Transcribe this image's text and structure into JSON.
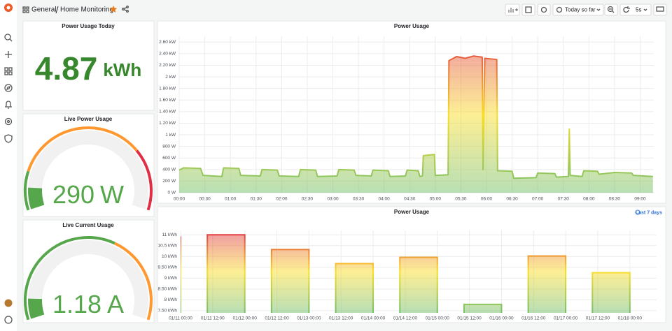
{
  "header": {
    "folder": "General",
    "dashboard": "Home Monitoring",
    "time_range": "Today so far",
    "refresh": "5s"
  },
  "chart_data": [
    {
      "type": "stat",
      "title": "Power Usage Today",
      "value": 4.87,
      "unit": "kWh",
      "color": "#37872d"
    },
    {
      "type": "gauge",
      "title": "Live Power Usage",
      "value": 290,
      "unit": "W",
      "min": 0,
      "max": 3000,
      "thresholds": [
        {
          "color": "#56a64b"
        },
        {
          "value": 500,
          "color": "#ff9830"
        },
        {
          "value": 2200,
          "color": "#e02f44"
        }
      ]
    },
    {
      "type": "gauge",
      "title": "Live Current Usage",
      "value": 1.18,
      "unit": "A",
      "min": 0,
      "max": 13,
      "thresholds": [
        {
          "color": "#56a64b"
        },
        {
          "value": 8,
          "color": "#ff9830"
        }
      ]
    },
    {
      "type": "line",
      "title": "Power Usage",
      "x": [
        "00:00",
        "00:05",
        "00:25",
        "00:28",
        "00:50",
        "00:52",
        "01:10",
        "01:12",
        "01:35",
        "01:37",
        "01:55",
        "01:57",
        "02:20",
        "02:22",
        "02:40",
        "02:42",
        "03:05",
        "03:07",
        "03:25",
        "03:27",
        "03:45",
        "03:47",
        "04:05",
        "04:07",
        "04:25",
        "04:27",
        "04:40",
        "04:42",
        "04:45",
        "04:46",
        "04:59",
        "05:00",
        "05:15",
        "05:16",
        "05:25",
        "05:35",
        "05:45",
        "05:55",
        "05:56",
        "05:58",
        "06:12",
        "06:13",
        "06:30",
        "06:32",
        "06:58",
        "07:00",
        "07:20",
        "07:22",
        "07:36",
        "07:37",
        "07:38",
        "07:52",
        "07:54",
        "08:10",
        "08:12",
        "08:30",
        "08:50",
        "08:52",
        "09:15"
      ],
      "values": [
        390,
        430,
        420,
        300,
        280,
        430,
        420,
        300,
        290,
        400,
        390,
        290,
        280,
        400,
        390,
        280,
        290,
        400,
        390,
        300,
        290,
        390,
        380,
        280,
        290,
        390,
        380,
        280,
        290,
        640,
        660,
        300,
        310,
        2280,
        2350,
        2320,
        2360,
        2340,
        400,
        2320,
        2300,
        380,
        370,
        250,
        260,
        340,
        330,
        270,
        280,
        1100,
        300,
        280,
        380,
        370,
        320,
        350,
        340,
        300,
        280
      ],
      "gradient": [
        "#73bf69",
        "#fade2a",
        "#e02f44"
      ],
      "xlim": [
        "00:00",
        "09:16"
      ],
      "xticks": [
        "00:00",
        "00:30",
        "01:00",
        "01:30",
        "02:00",
        "02:30",
        "03:00",
        "03:30",
        "04:00",
        "04:30",
        "05:00",
        "05:30",
        "06:00",
        "06:30",
        "07:00",
        "07:30",
        "08:00",
        "08:30",
        "09:00"
      ],
      "ylim": [
        0,
        2700
      ],
      "yticks": [
        {
          "value": 0,
          "label": "0 W"
        },
        {
          "value": 200,
          "label": "200 W"
        },
        {
          "value": 400,
          "label": "400 W"
        },
        {
          "value": 600,
          "label": "600 W"
        },
        {
          "value": 800,
          "label": "800 W"
        },
        {
          "value": 1000,
          "label": "1 kW"
        },
        {
          "value": 1200,
          "label": "1.20 kW"
        },
        {
          "value": 1400,
          "label": "1.40 kW"
        },
        {
          "value": 1600,
          "label": "1.60 kW"
        },
        {
          "value": 1800,
          "label": "1.80 kW"
        },
        {
          "value": 2000,
          "label": "2 kW"
        },
        {
          "value": 2200,
          "label": "2.20 kW"
        },
        {
          "value": 2400,
          "label": "2.40 kW"
        },
        {
          "value": 2600,
          "label": "2.60 kW"
        }
      ],
      "grid": true
    },
    {
      "type": "bar",
      "title": "Power Usage",
      "time_override": "Last 7 days",
      "x": [
        "01/11 00:00",
        "01/12 00:00",
        "01/13 00:00",
        "01/14 00:00",
        "01/15 00:00",
        "01/16 00:00",
        "01/17 00:00",
        "01/18 00:00"
      ],
      "values": [
        10.9,
        11.0,
        10.32,
        9.67,
        9.96,
        7.79,
        10.02,
        9.25
      ],
      "gradient": [
        "#73bf69",
        "#fade2a",
        "#e02f44"
      ],
      "xlim": [
        "01/11 00:00",
        "01/18 10:00"
      ],
      "xticks": [
        "01/11 00:00",
        "01/11 12:00",
        "01/12 00:00",
        "01/12 12:00",
        "01/13 00:00",
        "01/13 12:00",
        "01/14 00:00",
        "01/14 12:00",
        "01/15 00:00",
        "01/15 12:00",
        "01/16 00:00",
        "01/16 12:00",
        "01/17 00:00",
        "01/17 12:00",
        "01/18 00:00"
      ],
      "ylim": [
        7.4,
        11.2
      ],
      "yticks": [
        {
          "value": 7.5,
          "label": "7.50 kWh"
        },
        {
          "value": 8,
          "label": "8 kWh"
        },
        {
          "value": 8.5,
          "label": "8.50 kWh"
        },
        {
          "value": 9,
          "label": "9 kWh"
        },
        {
          "value": 9.5,
          "label": "9.50 kWh"
        },
        {
          "value": 10,
          "label": "10 kWh"
        },
        {
          "value": 10.5,
          "label": "10.5 kWh"
        },
        {
          "value": 11,
          "label": "11 kWh"
        }
      ],
      "grid": true
    }
  ]
}
